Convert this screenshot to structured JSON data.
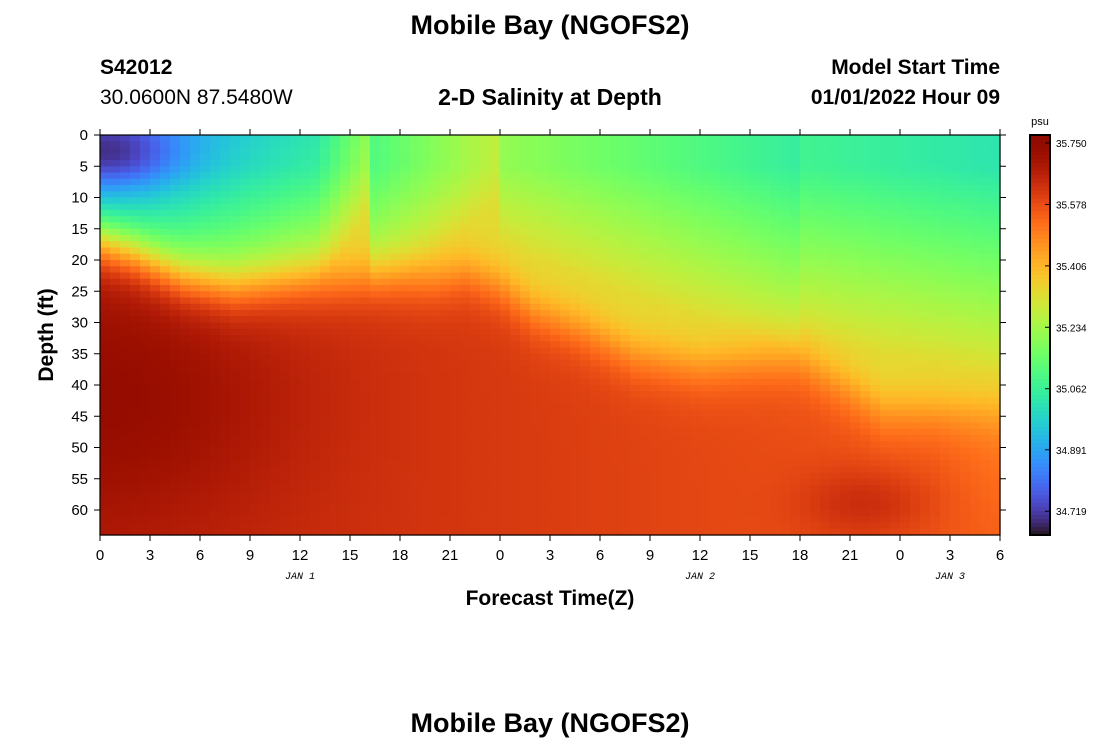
{
  "header": {
    "title": "Mobile Bay (NGOFS2)",
    "station_id": "S42012",
    "coords": "30.0600N  87.5480W",
    "subtitle": "2-D Salinity at Depth",
    "model_label": "Model Start Time",
    "model_time": "01/01/2022 Hour 09"
  },
  "footer": {
    "title": "Mobile Bay (NGOFS2)"
  },
  "chart_data": {
    "type": "heatmap",
    "title": "2-D Salinity at Depth",
    "xlabel": "Forecast Time(Z)",
    "ylabel": "Depth (ft)",
    "x_tick_labels": [
      "0",
      "3",
      "6",
      "9",
      "12",
      "15",
      "18",
      "21",
      "0",
      "3",
      "6",
      "9",
      "12",
      "15",
      "18",
      "21",
      "0",
      "3",
      "6"
    ],
    "date_labels": [
      {
        "label": "JAN 1",
        "at_tick": 4
      },
      {
        "label": "JAN 2",
        "at_tick": 12
      },
      {
        "label": "JAN 3",
        "at_tick": 17
      }
    ],
    "y_ticks": [
      0,
      5,
      10,
      15,
      20,
      25,
      30,
      35,
      40,
      45,
      50,
      55,
      60
    ],
    "ylim": [
      0,
      64
    ],
    "xlim_hours": [
      0,
      54
    ],
    "colorbar": {
      "unit": "psu",
      "ticks": [
        "35.750",
        "35.578",
        "35.406",
        "35.234",
        "35.062",
        "34.891",
        "34.719"
      ],
      "min": 34.63,
      "max": 35.75,
      "colormap": "turbo"
    },
    "interface_depth_ft": {
      "hours": [
        0,
        2,
        5,
        8,
        12,
        16,
        20,
        22,
        24,
        26,
        29,
        32,
        36,
        40,
        42,
        44,
        47,
        50,
        54
      ],
      "depths": [
        17,
        19,
        23,
        25,
        24,
        23,
        23,
        22,
        24,
        28,
        31,
        35,
        37,
        36,
        36,
        39,
        44,
        44,
        44
      ]
    }
  }
}
